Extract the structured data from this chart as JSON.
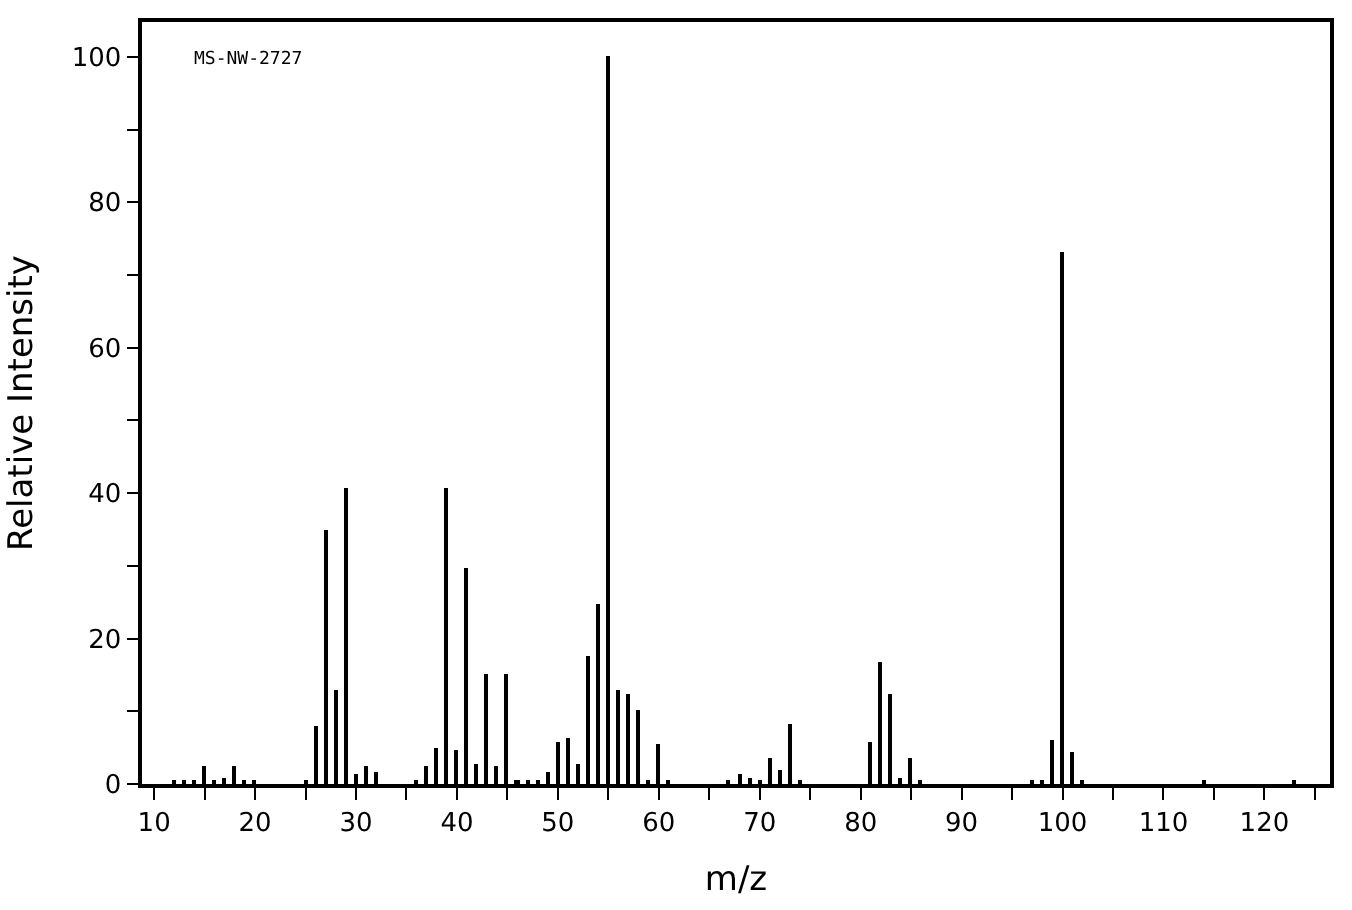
{
  "chart_data": {
    "type": "bar",
    "xlabel": "m/z",
    "ylabel": "Relative Intensity",
    "annotations": [
      "MS-NW-2727"
    ],
    "x": [
      12,
      13,
      14,
      15,
      16,
      17,
      18,
      19,
      20,
      25,
      26,
      27,
      28,
      29,
      30,
      31,
      32,
      36,
      37,
      38,
      39,
      40,
      41,
      42,
      43,
      44,
      45,
      46,
      47,
      48,
      49,
      50,
      51,
      52,
      53,
      54,
      55,
      56,
      57,
      58,
      59,
      60,
      61,
      67,
      68,
      69,
      70,
      71,
      72,
      73,
      74,
      81,
      82,
      83,
      84,
      85,
      86,
      97,
      98,
      99,
      100,
      101,
      102,
      114,
      123
    ],
    "values": [
      0.3,
      0.3,
      0.6,
      2.6,
      0.4,
      0.9,
      2.6,
      0.3,
      0.3,
      0.6,
      8.0,
      34.9,
      13.0,
      40.6,
      1.5,
      2.6,
      1.7,
      0.3,
      2.6,
      5.0,
      40.6,
      4.7,
      29.7,
      2.8,
      15.2,
      2.6,
      15.2,
      0.5,
      0.4,
      0.4,
      1.7,
      5.8,
      6.4,
      2.8,
      17.7,
      24.7,
      100,
      13.0,
      12.4,
      10.2,
      0.6,
      5.6,
      0.3,
      0.5,
      1.5,
      0.9,
      0.4,
      3.7,
      2.0,
      8.3,
      0.5,
      5.8,
      16.8,
      12.4,
      0.9,
      3.7,
      0.3,
      0.5,
      0.4,
      6.1,
      73.2,
      4.5,
      0.5,
      0.3,
      0.3
    ],
    "color": "#000000",
    "xlim": [
      8.8,
      126.5
    ],
    "ylim": [
      0,
      104.8
    ],
    "xticks": [
      10,
      20,
      30,
      40,
      50,
      60,
      70,
      80,
      90,
      100,
      110,
      120,
      {
        "value": 15,
        "label": null
      },
      {
        "value": 25,
        "label": null
      },
      {
        "value": 35,
        "label": null
      },
      {
        "value": 45,
        "label": null
      },
      {
        "value": 55,
        "label": null
      },
      {
        "value": 65,
        "label": null
      },
      {
        "value": 75,
        "label": null
      },
      {
        "value": 85,
        "label": null
      },
      {
        "value": 95,
        "label": null
      },
      {
        "value": 105,
        "label": null
      },
      {
        "value": 115,
        "label": null
      },
      {
        "value": 125,
        "label": null
      }
    ],
    "yticks": [
      0,
      20,
      40,
      60,
      80,
      100,
      {
        "value": 10,
        "label": null
      },
      {
        "value": 30,
        "label": null
      },
      {
        "value": 50,
        "label": null
      },
      {
        "value": 70,
        "label": null
      },
      {
        "value": 90,
        "label": null
      }
    ]
  }
}
